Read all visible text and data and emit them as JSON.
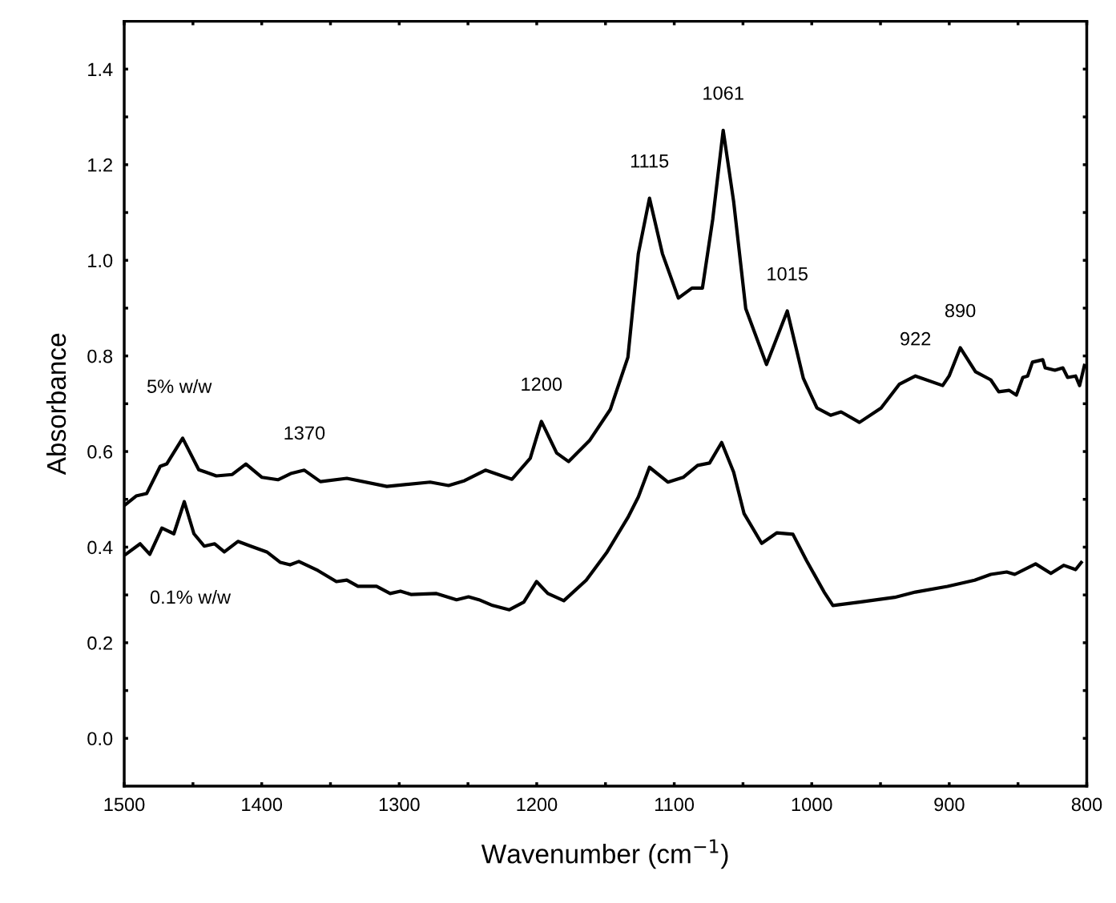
{
  "chart_data": {
    "type": "line",
    "xlabel": "Wavenumber (cm$^{−1}$)",
    "ylabel": "Absorbance",
    "xlim": [
      1500,
      800
    ],
    "ylim": [
      -0.1,
      1.5
    ],
    "xticks": [
      1500,
      {
        "value": 1450,
        "label": null
      },
      1400,
      {
        "value": 1350,
        "label": null
      },
      1300,
      {
        "value": 1250,
        "label": null
      },
      1200,
      {
        "value": 1150,
        "label": null
      },
      1100,
      {
        "value": 1050,
        "label": null
      },
      1000,
      {
        "value": 950,
        "label": null
      },
      900,
      {
        "value": 850,
        "label": null
      },
      800
    ],
    "yticks": [
      {
        "value": 0.0,
        "label": "0.0"
      },
      {
        "value": 0.1,
        "label": null
      },
      0.2,
      {
        "value": 0.3,
        "label": null
      },
      0.4,
      {
        "value": 0.5,
        "label": null
      },
      0.6,
      {
        "value": 0.7,
        "label": null
      },
      0.8,
      {
        "value": 0.9,
        "label": null
      },
      {
        "value": 1.0,
        "label": "1.0"
      },
      {
        "value": 1.1,
        "label": null
      },
      1.2,
      {
        "value": 1.3,
        "label": null
      },
      1.4
    ],
    "grid": false,
    "marker": "none",
    "line_style": "solid",
    "series": [
      {
        "name": "5% w/w",
        "color": "#000000",
        "x": [
          1500,
          1491.3,
          1483.7,
          1473.8,
          1469.1,
          1457.5,
          1445.8,
          1433,
          1421.4,
          1411.5,
          1399.8,
          1388.2,
          1378.9,
          1369,
          1357.3,
          1338.1,
          1309,
          1277.5,
          1264.1,
          1252.5,
          1237.3,
          1218,
          1204.7,
          1196.6,
          1185.5,
          1176.8,
          1161.6,
          1146.5,
          1133.7,
          1126.1,
          1118,
          1108.6,
          1097,
          1087.1,
          1079.5,
          1072,
          1064.4,
          1056.8,
          1048,
          1032.9,
          1017.8,
          1006.1,
          996.2,
          986.3,
          978.7,
          965.3,
          949.6,
          936.2,
          924.6,
          904.8,
          900.1,
          892,
          880.9,
          869.8,
          864,
          856.4,
          851.2,
          846.5,
          843,
          839.5,
          832,
          830.2,
          823.2,
          817.4,
          813.9,
          808.1,
          805.2,
          801.7
        ],
        "values": [
          0.487,
          0.507,
          0.512,
          0.569,
          0.574,
          0.628,
          0.562,
          0.549,
          0.552,
          0.574,
          0.546,
          0.541,
          0.554,
          0.561,
          0.537,
          0.544,
          0.527,
          0.536,
          0.529,
          0.539,
          0.561,
          0.542,
          0.586,
          0.663,
          0.597,
          0.579,
          0.623,
          0.688,
          0.797,
          1.014,
          1.13,
          1.014,
          0.921,
          0.942,
          0.942,
          1.086,
          1.272,
          1.123,
          0.899,
          0.782,
          0.894,
          0.753,
          0.691,
          0.676,
          0.683,
          0.661,
          0.691,
          0.741,
          0.758,
          0.738,
          0.758,
          0.817,
          0.767,
          0.75,
          0.725,
          0.728,
          0.718,
          0.755,
          0.758,
          0.787,
          0.792,
          0.775,
          0.77,
          0.775,
          0.755,
          0.758,
          0.738,
          0.78
        ]
      },
      {
        "name": "0.1% w/w",
        "color": "#000000",
        "x": [
          1498.8,
          1488.4,
          1481.4,
          1472.6,
          1463.9,
          1456.3,
          1449.3,
          1441.8,
          1434.2,
          1427.2,
          1417.3,
          1408,
          1396.3,
          1386.4,
          1379.4,
          1373,
          1359.1,
          1345.7,
          1338.1,
          1330,
          1316.5,
          1306.6,
          1299.1,
          1291.5,
          1272.9,
          1258.3,
          1249.6,
          1242,
          1232.1,
          1219.9,
          1209.4,
          1200.1,
          1191.9,
          1180.3,
          1164,
          1148.8,
          1133.7,
          1126.1,
          1118,
          1104.5,
          1093.5,
          1083,
          1074.3,
          1065.5,
          1056.8,
          1049.2,
          1036.4,
          1025.3,
          1013.7,
          1003.8,
          991,
          984.6,
          965.3,
          939.7,
          924.6,
          901.3,
          881.5,
          869.8,
          858.2,
          852.4,
          837.2,
          826.1,
          816.8,
          808.1,
          804
        ],
        "values": [
          0.385,
          0.407,
          0.385,
          0.44,
          0.428,
          0.495,
          0.428,
          0.402,
          0.407,
          0.39,
          0.412,
          0.402,
          0.39,
          0.368,
          0.363,
          0.37,
          0.351,
          0.328,
          0.331,
          0.318,
          0.318,
          0.303,
          0.308,
          0.301,
          0.303,
          0.29,
          0.296,
          0.29,
          0.278,
          0.269,
          0.285,
          0.328,
          0.303,
          0.288,
          0.331,
          0.39,
          0.462,
          0.505,
          0.567,
          0.536,
          0.546,
          0.571,
          0.576,
          0.619,
          0.557,
          0.47,
          0.408,
          0.43,
          0.427,
          0.372,
          0.306,
          0.278,
          0.285,
          0.295,
          0.306,
          0.318,
          0.331,
          0.343,
          0.348,
          0.343,
          0.365,
          0.345,
          0.362,
          0.353,
          0.368
        ]
      }
    ],
    "annotations": [
      {
        "text": "1370",
        "x": 1369,
        "y": 0.561
      },
      {
        "text": "1200",
        "x": 1196.6,
        "y": 0.663
      },
      {
        "text": "1115",
        "x": 1118,
        "y": 1.13
      },
      {
        "text": "1061",
        "x": 1064.4,
        "y": 1.272
      },
      {
        "text": "1015",
        "x": 1017.8,
        "y": 0.894
      },
      {
        "text": "922",
        "x": 924.6,
        "y": 0.758
      },
      {
        "text": "890",
        "x": 892,
        "y": 0.817
      }
    ]
  }
}
